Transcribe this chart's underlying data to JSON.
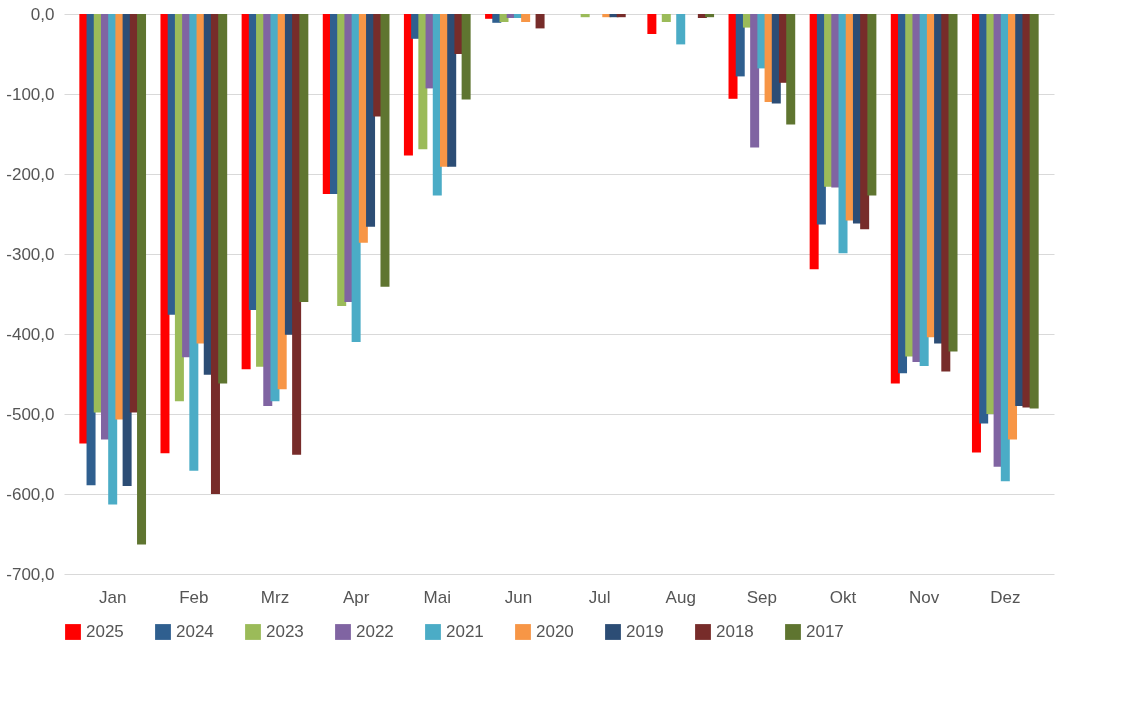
{
  "chart_data": {
    "type": "bar",
    "categories": [
      "Jan",
      "Feb",
      "Mrz",
      "Apr",
      "Mai",
      "Jun",
      "Jul",
      "Aug",
      "Sep",
      "Okt",
      "Nov",
      "Dez"
    ],
    "series": [
      {
        "name": "2025",
        "color": "#ff0000",
        "values": [
          -537,
          -549,
          -444,
          -225,
          -177,
          -6,
          0,
          -25,
          -106,
          -319,
          -462,
          -548
        ]
      },
      {
        "name": "2024",
        "color": "#2f5f8f",
        "values": [
          -589,
          -376,
          -370,
          -225,
          -31,
          -11,
          0,
          0,
          -78,
          -263,
          -449,
          -512
        ]
      },
      {
        "name": "2023",
        "color": "#9bbb59",
        "values": [
          -498,
          -484,
          -441,
          -365,
          -169,
          -10,
          -4,
          -10,
          -17,
          -216,
          -428,
          -500
        ]
      },
      {
        "name": "2022",
        "color": "#8064a2",
        "values": [
          -532,
          -429,
          -490,
          -360,
          -93,
          -5,
          0,
          0,
          -167,
          -217,
          -435,
          -566
        ]
      },
      {
        "name": "2021",
        "color": "#4bacc6",
        "values": [
          -613,
          -571,
          -484,
          -410,
          -227,
          -5,
          0,
          -38,
          -68,
          -299,
          -440,
          -584
        ]
      },
      {
        "name": "2020",
        "color": "#f79646",
        "values": [
          -507,
          -412,
          -469,
          -286,
          -191,
          -10,
          -4,
          0,
          -110,
          -258,
          -404,
          -532
        ]
      },
      {
        "name": "2019",
        "color": "#2c4d75",
        "values": [
          -590,
          -451,
          -401,
          -266,
          -191,
          0,
          -4,
          0,
          -112,
          -262,
          -412,
          -490
        ]
      },
      {
        "name": "2018",
        "color": "#772c2a",
        "values": [
          -498,
          -600,
          -551,
          -128,
          -50,
          -18,
          -4,
          -5,
          -86,
          -269,
          -447,
          -492
        ]
      },
      {
        "name": "2017",
        "color": "#5f7530",
        "values": [
          -663,
          -462,
          -360,
          -341,
          -107,
          0,
          0,
          -4,
          -138,
          -227,
          -422,
          -493
        ]
      }
    ],
    "ylim": [
      -700,
      0
    ],
    "yticks": [
      {
        "value": 0,
        "label": "0,0"
      },
      {
        "value": -100,
        "label": "-100,0"
      },
      {
        "value": -200,
        "label": "-200,0"
      },
      {
        "value": -300,
        "label": "-300,0"
      },
      {
        "value": -400,
        "label": "-400,0"
      },
      {
        "value": -500,
        "label": "-500,0"
      },
      {
        "value": -600,
        "label": "-600,0"
      },
      {
        "value": -700,
        "label": "-700,0"
      }
    ],
    "grid": "y",
    "legend": "bottom"
  }
}
